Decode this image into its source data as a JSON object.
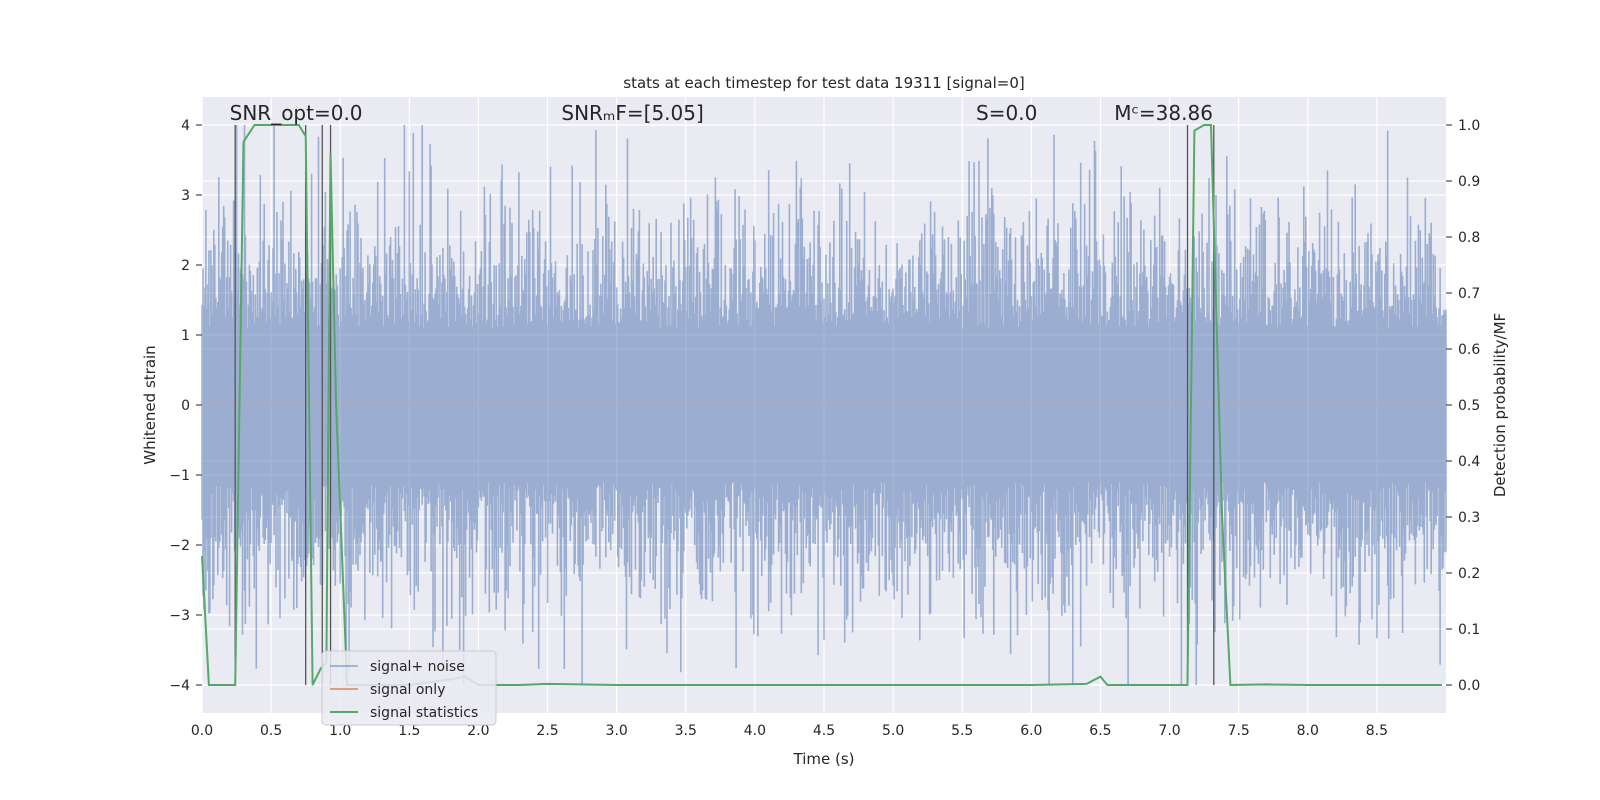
{
  "chart_data": {
    "type": "line",
    "title": "stats at each timestep for test data 19311 [signal=0]",
    "xlabel": "Time (s)",
    "ylabel_left": "Whitened strain",
    "ylabel_right": "Detection probability/MF",
    "xlim": [
      0.0,
      9.0
    ],
    "ylim_left": [
      -4.4,
      4.4
    ],
    "ylim_right": [
      -0.05,
      1.05
    ],
    "x_ticks": [
      0.0,
      0.5,
      1.0,
      1.5,
      2.0,
      2.5,
      3.0,
      3.5,
      4.0,
      4.5,
      5.0,
      5.5,
      6.0,
      6.5,
      7.0,
      7.5,
      8.0,
      8.5
    ],
    "x_tick_labels": [
      "0.0",
      "0.5",
      "1.0",
      "1.5",
      "2.0",
      "2.5",
      "3.0",
      "3.5",
      "4.0",
      "4.5",
      "5.0",
      "5.5",
      "6.0",
      "6.5",
      "7.0",
      "7.5",
      "8.0",
      "8.5"
    ],
    "y_left_ticks": [
      4,
      3,
      2,
      1,
      0,
      -1,
      -2,
      -3,
      -4
    ],
    "y_left_tick_labels": [
      "4",
      "3",
      "2",
      "1",
      "0",
      "−1",
      "−2",
      "−3",
      "−4"
    ],
    "y_right_ticks": [
      1.0,
      0.9,
      0.8,
      0.7,
      0.6,
      0.5,
      0.4,
      0.3,
      0.2,
      0.1,
      0.0
    ],
    "y_right_tick_labels": [
      "1.0",
      "0.9",
      "0.8",
      "0.7",
      "0.6",
      "0.5",
      "0.4",
      "0.3",
      "0.2",
      "0.1",
      "0.0"
    ],
    "annotations": [
      {
        "name": "snr-opt",
        "text": "SNR_opt=0.0",
        "x": 0.2,
        "y": 4.1
      },
      {
        "name": "snr-mf",
        "text": "SNRₘF=[5.05]",
        "x": 2.6,
        "y": 4.1
      },
      {
        "name": "s-stat",
        "text": "S=0.0",
        "x": 5.6,
        "y": 4.1
      },
      {
        "name": "chirp-mass",
        "text": "Mᶜ=38.86",
        "x": 6.6,
        "y": 4.1
      }
    ],
    "vertical_lines_x": [
      0.24,
      0.75,
      0.87,
      0.93,
      7.13,
      7.32
    ],
    "noise_envelope": {
      "amplitude_std": 1.0,
      "max_abs": 4.0,
      "samples_per_second": 140,
      "seed": 19311
    },
    "series": [
      {
        "name": "signal+ noise",
        "color": "#4c72b0",
        "axis": "left",
        "kind": "noise"
      },
      {
        "name": "signal only",
        "color": "#dd8452",
        "axis": "left",
        "x": [
          0.0,
          9.0
        ],
        "y": [
          0.0,
          0.0
        ]
      },
      {
        "name": "signal statistics",
        "color": "#55a868",
        "axis": "right",
        "x": [
          0.0,
          0.05,
          0.24,
          0.3,
          0.38,
          0.7,
          0.75,
          0.8,
          0.86,
          0.9,
          0.93,
          0.97,
          1.05,
          1.2,
          1.5,
          1.8,
          1.9,
          2.0,
          2.1,
          2.3,
          2.5,
          3.0,
          4.0,
          5.0,
          6.0,
          6.4,
          6.5,
          6.55,
          7.0,
          7.13,
          7.18,
          7.25,
          7.3,
          7.38,
          7.44,
          7.7,
          8.0,
          8.5,
          8.97
        ],
        "y": [
          0.23,
          0.0,
          0.0,
          0.97,
          1.0,
          1.0,
          0.98,
          0.0,
          0.03,
          0.04,
          0.95,
          0.5,
          0.0,
          0.0,
          0.0,
          0.01,
          0.015,
          0.0,
          0.0,
          0.0,
          0.002,
          0.0,
          0.0,
          0.0,
          0.0,
          0.002,
          0.015,
          0.0,
          0.0,
          0.0,
          0.99,
          1.0,
          1.0,
          0.3,
          0.0,
          0.001,
          0.0,
          0.0,
          0.0
        ]
      }
    ],
    "legend": {
      "position": "lower-left",
      "entries": [
        "signal+ noise",
        "signal only",
        "signal statistics"
      ]
    },
    "grid": true,
    "background_color": "#eaeaf2"
  }
}
